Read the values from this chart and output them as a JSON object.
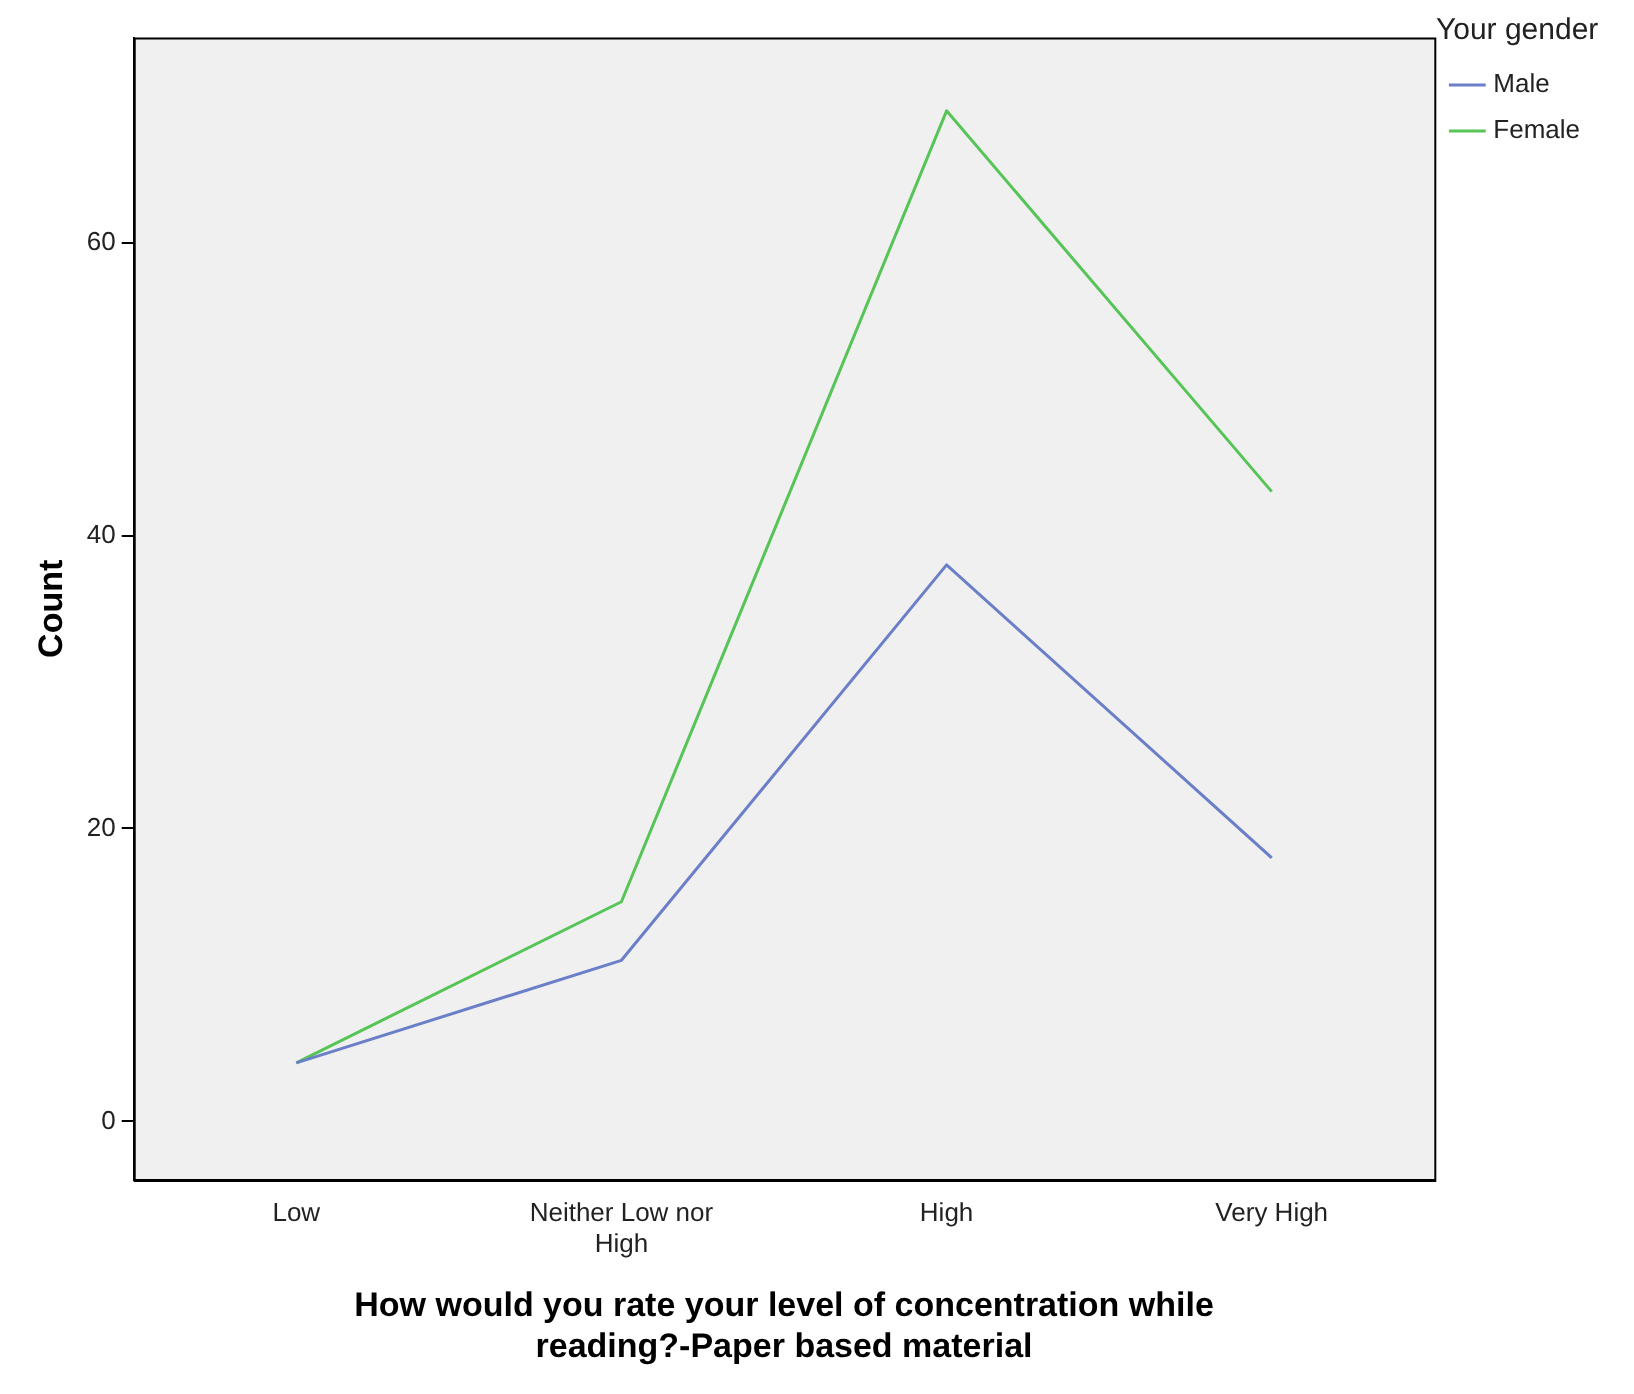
{
  "chart_data": {
    "type": "line",
    "xlabel": "How would you rate your level of concentration while reading?-Paper based material",
    "ylabel": "Count",
    "legend_title": "Your gender",
    "categories": [
      "Low",
      "Neither Low nor High",
      "High",
      "Very High"
    ],
    "series": [
      {
        "name": "Male",
        "color": "#6b7fc8",
        "values": [
          4,
          11,
          38,
          18
        ]
      },
      {
        "name": "Female",
        "color": "#56c456",
        "values": [
          4,
          15,
          69,
          43
        ]
      }
    ],
    "ylim": [
      -4,
      74
    ],
    "yticks": [
      0,
      20,
      40,
      60
    ],
    "grid": false,
    "legend": "top right",
    "marker": "none",
    "line_style": "solid"
  }
}
